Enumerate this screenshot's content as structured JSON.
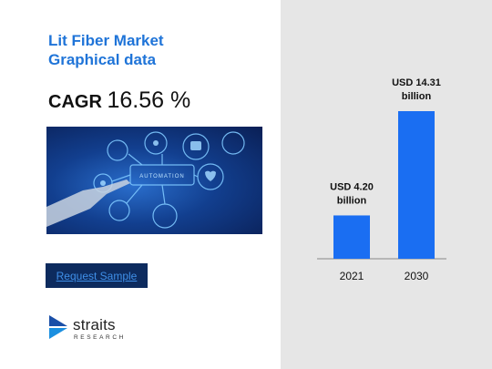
{
  "title": "Lit Fiber  Market\nGraphical data",
  "cagr": {
    "label": "CAGR ",
    "value": "16.56 %"
  },
  "cta": {
    "label": "Request Sample"
  },
  "logo": {
    "name": "straits",
    "sub": "RESEARCH"
  },
  "hero_image": {
    "caption": "AUTOMATION"
  },
  "colors": {
    "bar": "#1a6ef2",
    "title": "#1f74d8",
    "panel": "#e6e6e6",
    "button": "#0d2b5e"
  },
  "chart_data": {
    "type": "bar",
    "categories": [
      "2021",
      "2030"
    ],
    "values": [
      4.2,
      14.31
    ],
    "data_labels": [
      [
        "USD 4.20",
        "billion"
      ],
      [
        "USD 14.31",
        "billion"
      ]
    ],
    "title": "",
    "xlabel": "",
    "ylabel": "",
    "ylim": [
      0,
      14.31
    ],
    "grid": false
  }
}
